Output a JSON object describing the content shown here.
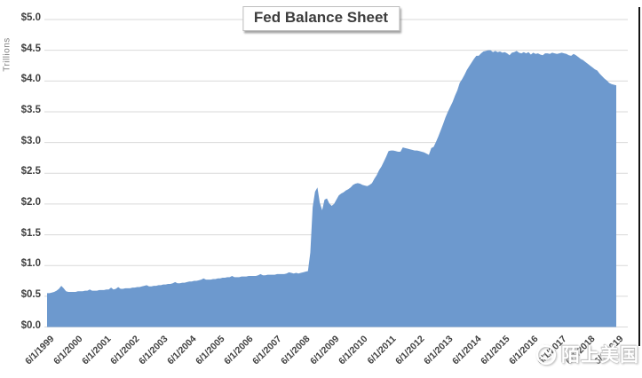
{
  "title": "Fed Balance Sheet",
  "y_axis": {
    "title": "Trillions",
    "tick_labels": [
      "$5.0",
      "$4.5",
      "$4.0",
      "$3.5",
      "$3.0",
      "$2.5",
      "$2.0",
      "$1.5",
      "$1.0",
      "$0.5",
      "$0.0"
    ]
  },
  "x_axis": {
    "tick_labels": [
      "6/1/1999",
      "6/1/2000",
      "6/1/2001",
      "6/1/2002",
      "6/1/2003",
      "6/1/2004",
      "6/1/2005",
      "6/1/2006",
      "6/1/2007",
      "6/1/2008",
      "6/1/2009",
      "6/1/2010",
      "6/1/2011",
      "6/1/2012",
      "6/1/2013",
      "6/1/2014",
      "6/1/2015",
      "6/1/2016",
      "6/1/2017",
      "6/1/2018",
      "6/1/2019"
    ]
  },
  "watermark": {
    "icon": "globe-logo-icon",
    "text": "陌上美国"
  },
  "colors": {
    "area_fill": "#6d99ce",
    "gridline": "#d9d9d9",
    "axis_text": "#404040",
    "title_text": "#3d3d3d"
  },
  "chart_data": {
    "type": "area",
    "title": "Fed Balance Sheet",
    "ylabel": "Trillions",
    "unit": "USD trillions",
    "x_start": "6/1/1999",
    "x_end": "6/1/2019",
    "x_step_months": 1,
    "ylim": [
      0,
      5
    ],
    "ytick_step": 0.5,
    "grid": true,
    "legend": false,
    "values": [
      0.55,
      0.55,
      0.56,
      0.57,
      0.59,
      0.62,
      0.67,
      0.63,
      0.58,
      0.57,
      0.57,
      0.57,
      0.57,
      0.58,
      0.58,
      0.58,
      0.59,
      0.59,
      0.61,
      0.59,
      0.59,
      0.59,
      0.6,
      0.6,
      0.6,
      0.61,
      0.61,
      0.64,
      0.61,
      0.62,
      0.65,
      0.62,
      0.62,
      0.63,
      0.63,
      0.63,
      0.64,
      0.64,
      0.65,
      0.65,
      0.66,
      0.67,
      0.68,
      0.66,
      0.66,
      0.67,
      0.67,
      0.68,
      0.68,
      0.69,
      0.69,
      0.7,
      0.7,
      0.71,
      0.73,
      0.71,
      0.71,
      0.72,
      0.72,
      0.73,
      0.74,
      0.74,
      0.75,
      0.75,
      0.76,
      0.77,
      0.79,
      0.77,
      0.77,
      0.77,
      0.78,
      0.78,
      0.79,
      0.79,
      0.8,
      0.8,
      0.81,
      0.81,
      0.83,
      0.81,
      0.81,
      0.81,
      0.82,
      0.82,
      0.82,
      0.83,
      0.83,
      0.83,
      0.83,
      0.84,
      0.86,
      0.84,
      0.84,
      0.85,
      0.85,
      0.85,
      0.85,
      0.86,
      0.86,
      0.86,
      0.86,
      0.87,
      0.89,
      0.88,
      0.87,
      0.88,
      0.87,
      0.88,
      0.89,
      0.9,
      0.91,
      1.21,
      1.95,
      2.2,
      2.27,
      2.02,
      1.9,
      2.07,
      2.09,
      2.01,
      1.97,
      2.0,
      2.07,
      2.14,
      2.17,
      2.19,
      2.22,
      2.24,
      2.27,
      2.31,
      2.33,
      2.34,
      2.33,
      2.31,
      2.3,
      2.29,
      2.31,
      2.34,
      2.41,
      2.47,
      2.55,
      2.61,
      2.69,
      2.77,
      2.86,
      2.87,
      2.87,
      2.86,
      2.85,
      2.85,
      2.92,
      2.91,
      2.9,
      2.89,
      2.88,
      2.87,
      2.87,
      2.86,
      2.85,
      2.84,
      2.82,
      2.8,
      2.91,
      2.93,
      3.01,
      3.1,
      3.2,
      3.3,
      3.41,
      3.5,
      3.58,
      3.66,
      3.76,
      3.85,
      3.97,
      4.03,
      4.1,
      4.18,
      4.24,
      4.3,
      4.36,
      4.41,
      4.41,
      4.45,
      4.48,
      4.49,
      4.5,
      4.5,
      4.47,
      4.49,
      4.47,
      4.48,
      4.46,
      4.47,
      4.45,
      4.42,
      4.46,
      4.47,
      4.49,
      4.46,
      4.45,
      4.47,
      4.45,
      4.47,
      4.43,
      4.46,
      4.44,
      4.45,
      4.43,
      4.42,
      4.45,
      4.45,
      4.44,
      4.46,
      4.45,
      4.44,
      4.45,
      4.46,
      4.45,
      4.44,
      4.42,
      4.41,
      4.44,
      4.42,
      4.39,
      4.36,
      4.34,
      4.31,
      4.28,
      4.25,
      4.22,
      4.19,
      4.17,
      4.12,
      4.08,
      4.04,
      4.01,
      3.97,
      3.95,
      3.94,
      3.93
    ]
  }
}
